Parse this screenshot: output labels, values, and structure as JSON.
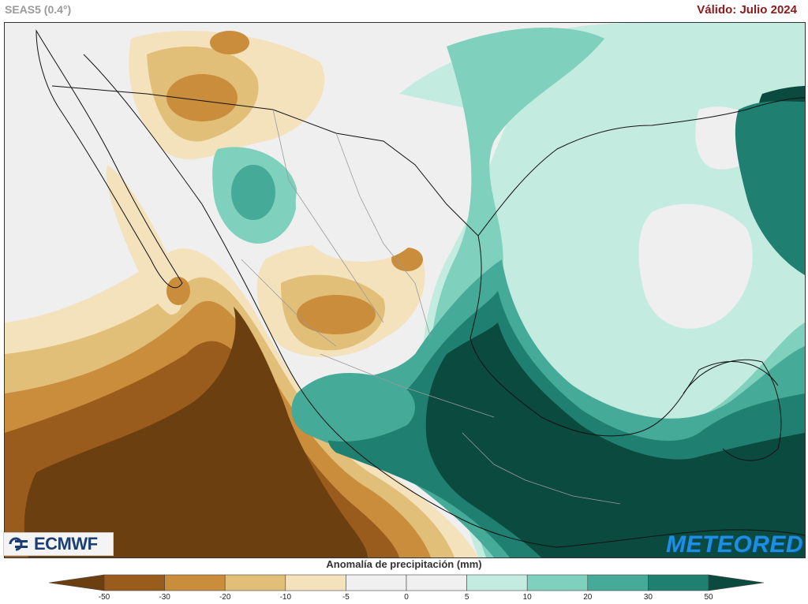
{
  "header": {
    "model": "SEAS5 (0.4°)",
    "valid": "Válido: Julio 2024"
  },
  "logos": {
    "left": "ECMWF",
    "right": "METEORED"
  },
  "legend": {
    "title": "Anomalía de precipitación (mm)",
    "ticks": [
      "-50",
      "-30",
      "-20",
      "-10",
      "-5",
      "0",
      "5",
      "10",
      "20",
      "30",
      "50"
    ],
    "colors": [
      "#6b3f10",
      "#9a5c1c",
      "#c98d3c",
      "#e2bf78",
      "#f4e2bc",
      "#f0f0f0",
      "#f0f0f0",
      "#c3ebe0",
      "#7fd0bc",
      "#45aa97",
      "#1f7f70",
      "#0b4a3f"
    ]
  },
  "map": {
    "colors": {
      "neutral": "#efefef",
      "dry_light": "#f4e2bc",
      "dry_mid": "#e2bf78",
      "dry_strong": "#c98d3c",
      "dry_very": "#9a5c1c",
      "dry_extreme": "#6b3f10",
      "wet_light": "#c3ebe0",
      "wet_mid": "#7fd0bc",
      "wet_strong": "#45aa97",
      "wet_very": "#1f7f70",
      "wet_extreme": "#0b4a3f"
    }
  }
}
